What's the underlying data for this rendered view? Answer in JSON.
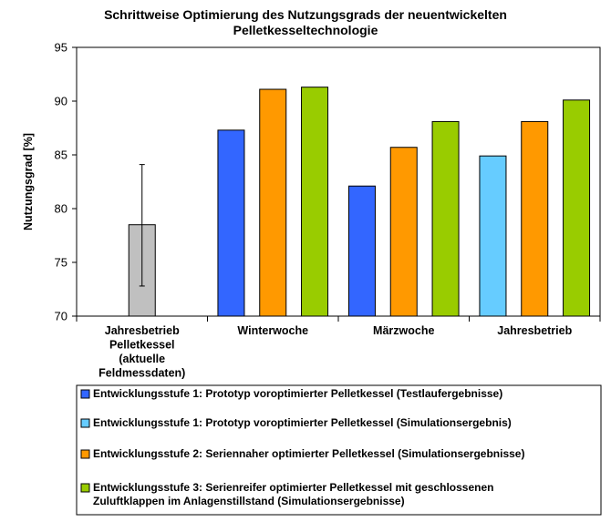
{
  "chart_data": {
    "type": "bar",
    "title_lines": [
      "Schrittweise Optimierung des Nutzungsgrads der neuentwickelten",
      "Pelletkesseltechnologie"
    ],
    "ylabel": "Nutzungsgrad [%]",
    "ylim": [
      70,
      95
    ],
    "yticks": [
      70,
      75,
      80,
      85,
      90,
      95
    ],
    "grid": false,
    "legend_position": "bottom",
    "categories": [
      {
        "lines": [
          "Jahresbetrieb",
          "Pelletkessel",
          "(aktuelle",
          "Feldmessdaten)"
        ]
      },
      {
        "lines": [
          "Winterwoche"
        ]
      },
      {
        "lines": [
          "Märzwoche"
        ]
      },
      {
        "lines": [
          "Jahresbetrieb"
        ]
      }
    ],
    "series": [
      {
        "key": "ref",
        "color": "#c0c0c0",
        "values": [
          78.5,
          null,
          null,
          null
        ],
        "error_bar": [
          72.8,
          84.1
        ]
      },
      {
        "key": "s1_test",
        "name_lines": [
          "Entwicklungsstufe 1: Prototyp voroptimierter Pelletkessel (Testlaufergebnisse)"
        ],
        "color": "#3366ff",
        "values": [
          null,
          87.3,
          82.1,
          null
        ]
      },
      {
        "key": "s1_sim",
        "name_lines": [
          "Entwicklungsstufe 1: Prototyp voroptimierter Pelletkessel (Simulationsergebnis)"
        ],
        "color": "#66ccff",
        "values": [
          null,
          null,
          null,
          84.9
        ]
      },
      {
        "key": "s2",
        "name_lines": [
          "Entwicklungsstufe 2: Seriennaher optimierter Pelletkessel (Simulationsergebnisse)"
        ],
        "color": "#ff9900",
        "values": [
          null,
          91.1,
          85.7,
          88.1
        ]
      },
      {
        "key": "s3",
        "name_lines": [
          "Entwicklungsstufe 3: Serienreifer optimierter Pelletkessel mit geschlossenen",
          "Zuluftklappen im Anlagenstillstand (Simulationsergebnisse)"
        ],
        "color": "#99cc00",
        "values": [
          null,
          91.3,
          88.1,
          90.1
        ]
      }
    ]
  }
}
